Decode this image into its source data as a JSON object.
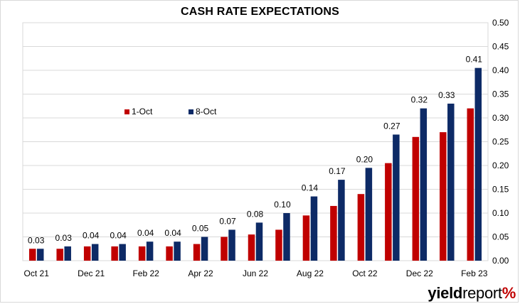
{
  "chart_data": {
    "type": "bar",
    "title": "CASH RATE EXPECTATIONS",
    "categories": [
      "Oct 21",
      "Nov 21",
      "Dec 21",
      "Jan 22",
      "Feb 22",
      "Mar 22",
      "Apr 22",
      "May 22",
      "Jun 22",
      "Jul 22",
      "Aug 22",
      "Sep 22",
      "Oct 22",
      "Nov 22",
      "Dec 22",
      "Jan 23",
      "Feb 23"
    ],
    "xtick_labels": [
      "Oct 21",
      "Dec 21",
      "Feb 22",
      "Apr 22",
      "Jun 22",
      "Aug 22",
      "Oct 22",
      "Dec 22",
      "Feb 23"
    ],
    "series": [
      {
        "name": "1-Oct",
        "color": "#c00000",
        "values": [
          0.025,
          0.025,
          0.03,
          0.03,
          0.03,
          0.03,
          0.035,
          0.05,
          0.055,
          0.065,
          0.095,
          0.115,
          0.14,
          0.205,
          0.26,
          0.27,
          0.32
        ]
      },
      {
        "name": "8-Oct",
        "color": "#0d2a66",
        "values": [
          0.025,
          0.03,
          0.035,
          0.035,
          0.04,
          0.04,
          0.05,
          0.065,
          0.08,
          0.1,
          0.135,
          0.17,
          0.195,
          0.265,
          0.32,
          0.33,
          0.405
        ]
      }
    ],
    "data_labels": [
      "0.03",
      "0.03",
      "0.04",
      "0.04",
      "0.04",
      "0.04",
      "0.05",
      "0.07",
      "0.08",
      "0.10",
      "0.14",
      "0.17",
      "0.20",
      "0.27",
      "0.32",
      "0.33",
      "0.41"
    ],
    "y_axis": {
      "position": "right",
      "ylim": [
        0,
        0.5
      ],
      "ticks": [
        "0.00",
        "0.05",
        "0.10",
        "0.15",
        "0.20",
        "0.25",
        "0.30",
        "0.35",
        "0.40",
        "0.45",
        "0.50"
      ]
    },
    "grid": true,
    "legend": "upper-left inside plot"
  },
  "branding": {
    "logo_part1": "yield",
    "logo_part2": "report",
    "logo_symbol": "%"
  }
}
